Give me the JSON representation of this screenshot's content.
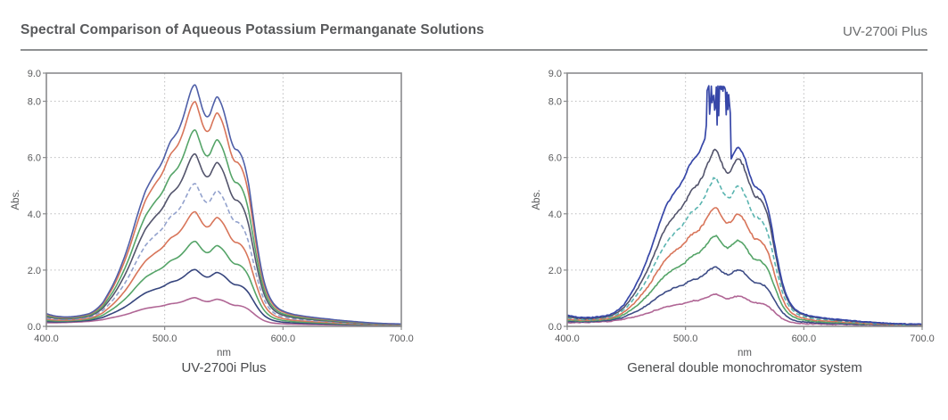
{
  "header": {
    "title": "Spectral Comparison of Aqueous Potassium Permanganate Solutions",
    "product": "UV-2700i Plus"
  },
  "chart_data": [
    {
      "type": "line",
      "title": "UV-2700i Plus",
      "xlabel": "nm",
      "ylabel": "Abs.",
      "xlim": [
        400,
        700
      ],
      "ylim": [
        0,
        9
      ],
      "x_tick_labels": [
        "400.0",
        "500.0",
        "600.0",
        "700.0"
      ],
      "y_tick_labels": [
        "0.0",
        "2.0",
        "4.0",
        "6.0",
        "8.0",
        "9.0"
      ],
      "x_gridlines": [
        500,
        600
      ],
      "y_gridlines": [
        2,
        4,
        6,
        8
      ],
      "grid_style": "dotted",
      "legend": "none",
      "noise_amp": 0.012,
      "series": [
        {
          "color": "#4f5fa8",
          "peak_abs": 8.55,
          "dashed": false
        },
        {
          "color": "#d8755a",
          "peak_abs": 7.95,
          "dashed": false
        },
        {
          "color": "#55a468",
          "peak_abs": 6.95,
          "dashed": false
        },
        {
          "color": "#53546c",
          "peak_abs": 6.1,
          "dashed": false
        },
        {
          "color": "#93a2cd",
          "peak_abs": 5.05,
          "dashed": true
        },
        {
          "color": "#d8755a",
          "peak_abs": 4.05,
          "dashed": false
        },
        {
          "color": "#55a468",
          "peak_abs": 3.0,
          "dashed": false
        },
        {
          "color": "#36457d",
          "peak_abs": 2.0,
          "dashed": false
        },
        {
          "color": "#b06695",
          "peak_abs": 1.0,
          "dashed": false
        }
      ]
    },
    {
      "type": "line",
      "title": "General double monochromator system",
      "xlabel": "nm",
      "ylabel": "Abs.",
      "xlim": [
        400,
        700
      ],
      "ylim": [
        0,
        9
      ],
      "x_tick_labels": [
        "400.0",
        "500.0",
        "600.0",
        "700.0"
      ],
      "y_tick_labels": [
        "0.0",
        "2.0",
        "4.0",
        "6.0",
        "8.0",
        "9.0"
      ],
      "x_gridlines": [
        500,
        600
      ],
      "y_gridlines": [
        2,
        4,
        6,
        8
      ],
      "grid_style": "dotted",
      "legend": "none",
      "noise_amp": 0.05,
      "series": [
        {
          "color": "#3747a8",
          "peak_abs": 8.55,
          "dashed": false,
          "saturated": true,
          "clip_band_nm": [
            517.5,
            538.5
          ],
          "clip_noise_abs": [
            7.1,
            8.55
          ],
          "scale_before_clip": 7.6,
          "scale_after_clip": 6.7
        },
        {
          "color": "#53546c",
          "peak_abs": 6.25,
          "dashed": false
        },
        {
          "color": "#5ab4b0",
          "peak_abs": 5.25,
          "dashed": true
        },
        {
          "color": "#d8755a",
          "peak_abs": 4.2,
          "dashed": false
        },
        {
          "color": "#55a468",
          "peak_abs": 3.2,
          "dashed": false
        },
        {
          "color": "#3d4c86",
          "peak_abs": 2.1,
          "dashed": false
        },
        {
          "color": "#b06695",
          "peak_abs": 1.12,
          "dashed": false
        }
      ]
    }
  ],
  "spectral_profile": {
    "peak_nm": 524,
    "normalized_points": [
      [
        400,
        0.043
      ],
      [
        404,
        0.036
      ],
      [
        408,
        0.031
      ],
      [
        412,
        0.028
      ],
      [
        416,
        0.026
      ],
      [
        420,
        0.026
      ],
      [
        424,
        0.027
      ],
      [
        428,
        0.029
      ],
      [
        432,
        0.032
      ],
      [
        436,
        0.036
      ],
      [
        440,
        0.045
      ],
      [
        444,
        0.06
      ],
      [
        448,
        0.082
      ],
      [
        452,
        0.115
      ],
      [
        456,
        0.15
      ],
      [
        460,
        0.195
      ],
      [
        464,
        0.245
      ],
      [
        468,
        0.3
      ],
      [
        472,
        0.365
      ],
      [
        476,
        0.435
      ],
      [
        480,
        0.5
      ],
      [
        484,
        0.555
      ],
      [
        488,
        0.595
      ],
      [
        492,
        0.63
      ],
      [
        496,
        0.66
      ],
      [
        500,
        0.7
      ],
      [
        503,
        0.745
      ],
      [
        506,
        0.775
      ],
      [
        509,
        0.79
      ],
      [
        512,
        0.815
      ],
      [
        515,
        0.855
      ],
      [
        518,
        0.905
      ],
      [
        521,
        0.96
      ],
      [
        524,
        1.0
      ],
      [
        526,
        1.0
      ],
      [
        528,
        0.975
      ],
      [
        531,
        0.915
      ],
      [
        534,
        0.875
      ],
      [
        536,
        0.868
      ],
      [
        538,
        0.878
      ],
      [
        541,
        0.92
      ],
      [
        544,
        0.952
      ],
      [
        546,
        0.945
      ],
      [
        549,
        0.91
      ],
      [
        552,
        0.855
      ],
      [
        555,
        0.79
      ],
      [
        558,
        0.74
      ],
      [
        561,
        0.735
      ],
      [
        564,
        0.72
      ],
      [
        567,
        0.68
      ],
      [
        570,
        0.62
      ],
      [
        573,
        0.52
      ],
      [
        576,
        0.41
      ],
      [
        579,
        0.31
      ],
      [
        582,
        0.225
      ],
      [
        585,
        0.165
      ],
      [
        588,
        0.125
      ],
      [
        591,
        0.098
      ],
      [
        594,
        0.08
      ],
      [
        597,
        0.068
      ],
      [
        600,
        0.06
      ],
      [
        605,
        0.051
      ],
      [
        610,
        0.045
      ],
      [
        620,
        0.037
      ],
      [
        630,
        0.031
      ],
      [
        640,
        0.026
      ],
      [
        650,
        0.021
      ],
      [
        660,
        0.017
      ],
      [
        670,
        0.013
      ],
      [
        680,
        0.01
      ],
      [
        690,
        0.0075
      ],
      [
        700,
        0.006
      ]
    ],
    "baseline_points": [
      [
        400,
        0.085
      ],
      [
        410,
        0.102
      ],
      [
        420,
        0.118
      ],
      [
        430,
        0.132
      ],
      [
        440,
        0.15
      ],
      [
        450,
        0.163
      ],
      [
        455,
        0.165
      ],
      [
        460,
        0.155
      ],
      [
        470,
        0.125
      ],
      [
        480,
        0.095
      ],
      [
        490,
        0.065
      ],
      [
        500,
        0.045
      ],
      [
        510,
        0.03
      ],
      [
        520,
        0.02
      ],
      [
        530,
        0.015
      ],
      [
        540,
        0.012
      ],
      [
        550,
        0.01
      ],
      [
        560,
        0.01
      ],
      [
        570,
        0.012
      ],
      [
        580,
        0.018
      ],
      [
        590,
        0.025
      ],
      [
        600,
        0.03
      ],
      [
        620,
        0.032
      ],
      [
        640,
        0.03
      ],
      [
        660,
        0.027
      ],
      [
        680,
        0.025
      ],
      [
        700,
        0.035
      ]
    ]
  },
  "colors": {
    "title_text": "#58595b",
    "rule": "#8e9092",
    "plot_border": "#8a8b8d",
    "gridline": "#bcbcbe",
    "tick_text": "#58595b",
    "caption_text": "#4a4b4d"
  }
}
